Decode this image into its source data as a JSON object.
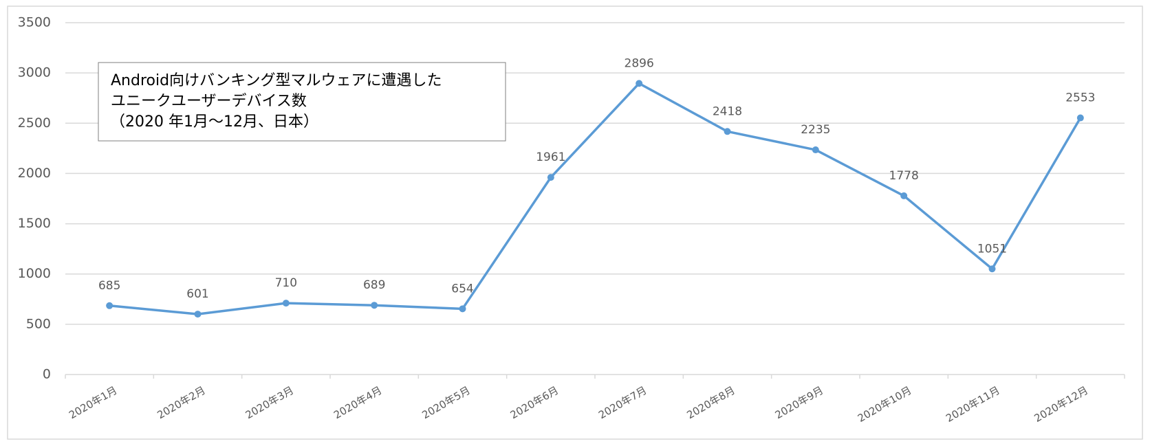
{
  "chart_data": {
    "type": "line",
    "title": [
      "Android向けバンキング型マルウェアに遭遇した",
      "ユニークユーザーデバイス数",
      "（2020 年1月～12月、日本）"
    ],
    "categories": [
      "2020年1月",
      "2020年2月",
      "2020年3月",
      "2020年4月",
      "2020年5月",
      "2020年6月",
      "2020年7月",
      "2020年8月",
      "2020年9月",
      "2020年10月",
      "2020年11月",
      "2020年12月"
    ],
    "series": [
      {
        "color": "#5b9bd5",
        "values": [
          685,
          601,
          710,
          689,
          654,
          1961,
          2896,
          2418,
          2235,
          1778,
          1051,
          2553
        ]
      }
    ],
    "ylim": [
      0,
      3500
    ],
    "yticks": [
      0,
      500,
      1000,
      1500,
      2000,
      2500,
      3000,
      3500
    ],
    "grid": true,
    "data_labels": true
  }
}
